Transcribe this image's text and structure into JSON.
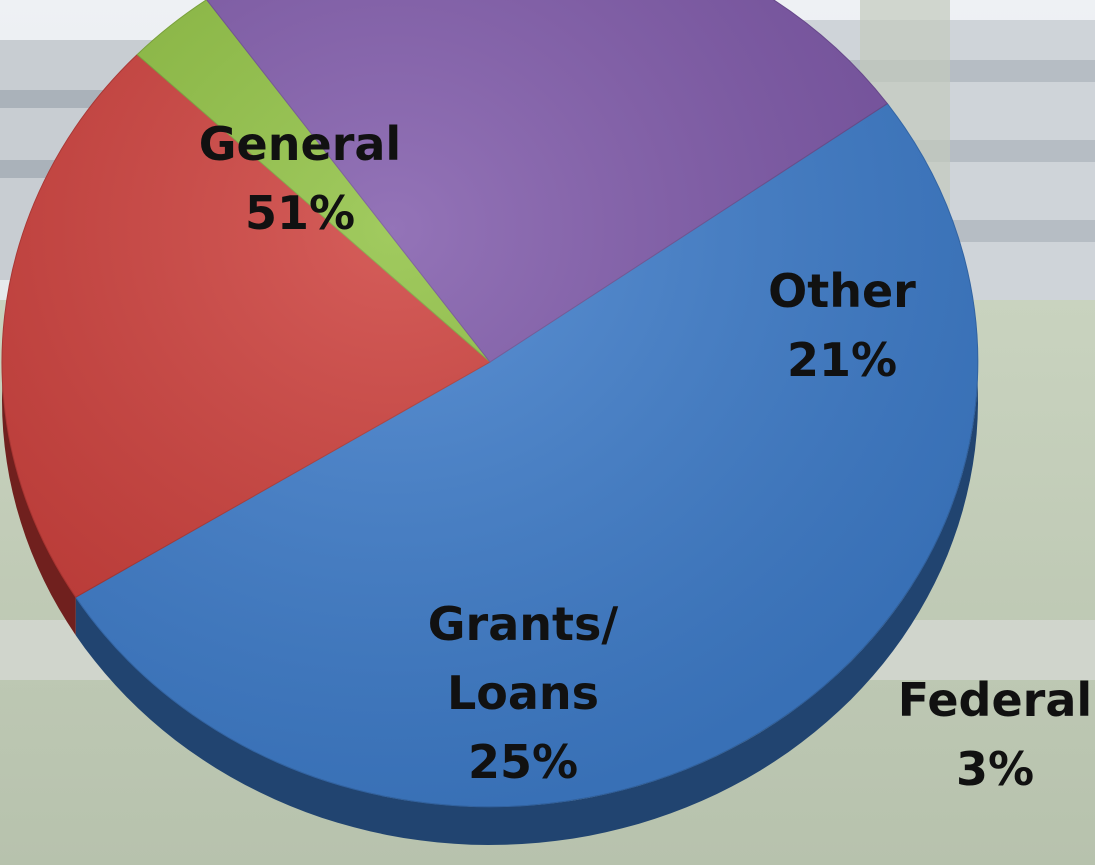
{
  "chart_data": {
    "type": "pie",
    "categories": [
      "General",
      "Other",
      "Federal",
      "Grants/ Loans"
    ],
    "values": [
      51,
      21,
      3,
      25
    ],
    "value_labels": [
      "51%",
      "21%",
      "3%",
      "25%"
    ],
    "colors": [
      "#3c7ccc",
      "#cc3a36",
      "#8cbf3c",
      "#7c55a8"
    ],
    "title": "",
    "legend": "none",
    "three_d": true
  }
}
